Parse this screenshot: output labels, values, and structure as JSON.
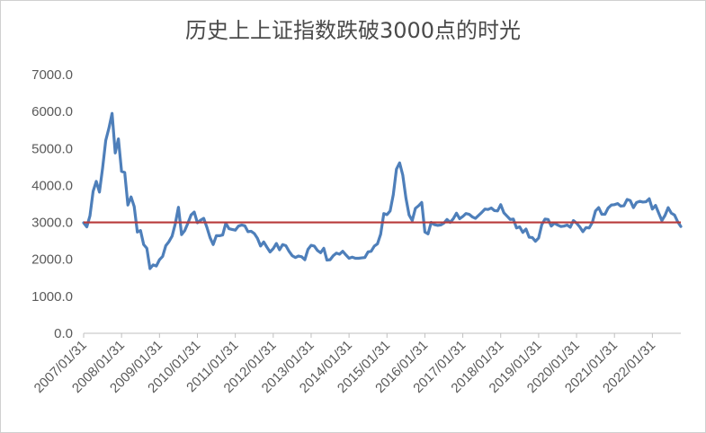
{
  "chart_data": {
    "type": "line",
    "title": "历史上上证指数跌破3000点的时光",
    "xlabel": "",
    "ylabel": "",
    "ylim": [
      0,
      7000
    ],
    "yticks": [
      "0.0",
      "1000.0",
      "2000.0",
      "3000.0",
      "4000.0",
      "5000.0",
      "6000.0",
      "7000.0"
    ],
    "xticks": [
      "2007/01/31",
      "2008/01/31",
      "2009/01/31",
      "2010/01/31",
      "2011/01/31",
      "2012/01/31",
      "2013/01/31",
      "2014/01/31",
      "2015/01/31",
      "2016/01/31",
      "2017/01/31",
      "2018/01/31",
      "2019/01/31",
      "2020/01/31",
      "2021/01/31",
      "2022/01/31"
    ],
    "grid": false,
    "legend": "none",
    "series": [
      {
        "color": "#4e7fba",
        "x": [
          "2007/01",
          "2007/02",
          "2007/03",
          "2007/04",
          "2007/05",
          "2007/06",
          "2007/07",
          "2007/08",
          "2007/09",
          "2007/10",
          "2007/11",
          "2007/12",
          "2008/01",
          "2008/02",
          "2008/03",
          "2008/04",
          "2008/05",
          "2008/06",
          "2008/07",
          "2008/08",
          "2008/09",
          "2008/10",
          "2008/11",
          "2008/12",
          "2009/01",
          "2009/02",
          "2009/03",
          "2009/04",
          "2009/05",
          "2009/06",
          "2009/07",
          "2009/08",
          "2009/09",
          "2009/10",
          "2009/11",
          "2009/12",
          "2010/01",
          "2010/02",
          "2010/03",
          "2010/04",
          "2010/05",
          "2010/06",
          "2010/07",
          "2010/08",
          "2010/09",
          "2010/10",
          "2010/11",
          "2010/12",
          "2011/01",
          "2011/02",
          "2011/03",
          "2011/04",
          "2011/05",
          "2011/06",
          "2011/07",
          "2011/08",
          "2011/09",
          "2011/10",
          "2011/11",
          "2011/12",
          "2012/01",
          "2012/02",
          "2012/03",
          "2012/04",
          "2012/05",
          "2012/06",
          "2012/07",
          "2012/08",
          "2012/09",
          "2012/10",
          "2012/11",
          "2012/12",
          "2013/01",
          "2013/02",
          "2013/03",
          "2013/04",
          "2013/05",
          "2013/06",
          "2013/07",
          "2013/08",
          "2013/09",
          "2013/10",
          "2013/11",
          "2013/12",
          "2014/01",
          "2014/02",
          "2014/03",
          "2014/04",
          "2014/05",
          "2014/06",
          "2014/07",
          "2014/08",
          "2014/09",
          "2014/10",
          "2014/11",
          "2014/12",
          "2015/01",
          "2015/02",
          "2015/03",
          "2015/04",
          "2015/05",
          "2015/06",
          "2015/07",
          "2015/08",
          "2015/09",
          "2015/10",
          "2015/11",
          "2015/12",
          "2016/01",
          "2016/02",
          "2016/03",
          "2016/04",
          "2016/05",
          "2016/06",
          "2016/07",
          "2016/08",
          "2016/09",
          "2016/10",
          "2016/11",
          "2016/12",
          "2017/01",
          "2017/02",
          "2017/03",
          "2017/04",
          "2017/05",
          "2017/06",
          "2017/07",
          "2017/08",
          "2017/09",
          "2017/10",
          "2017/11",
          "2017/12",
          "2018/01",
          "2018/02",
          "2018/03",
          "2018/04",
          "2018/05",
          "2018/06",
          "2018/07",
          "2018/08",
          "2018/09",
          "2018/10",
          "2018/11",
          "2018/12",
          "2019/01",
          "2019/02",
          "2019/03",
          "2019/04",
          "2019/05",
          "2019/06",
          "2019/07",
          "2019/08",
          "2019/09",
          "2019/10",
          "2019/11",
          "2019/12",
          "2020/01",
          "2020/02",
          "2020/03",
          "2020/04",
          "2020/05",
          "2020/06",
          "2020/07",
          "2020/08",
          "2020/09",
          "2020/10",
          "2020/11",
          "2020/12",
          "2021/01",
          "2021/02",
          "2021/03",
          "2021/04",
          "2021/05",
          "2021/06",
          "2021/07",
          "2021/08",
          "2021/09",
          "2021/10",
          "2021/11",
          "2021/12",
          "2022/01",
          "2022/02",
          "2022/03",
          "2022/04",
          "2022/05",
          "2022/06",
          "2022/07",
          "2022/08",
          "2022/09",
          "2022/10"
        ],
        "values": [
          2990,
          2880,
          3180,
          3840,
          4110,
          3820,
          4470,
          5220,
          5550,
          5950,
          4880,
          5260,
          4380,
          4350,
          3470,
          3690,
          3430,
          2740,
          2780,
          2400,
          2300,
          1750,
          1850,
          1820,
          1990,
          2080,
          2370,
          2480,
          2630,
          2960,
          3410,
          2670,
          2780,
          2980,
          3200,
          3280,
          2990,
          3060,
          3110,
          2870,
          2590,
          2400,
          2640,
          2640,
          2660,
          2980,
          2830,
          2810,
          2790,
          2900,
          2930,
          2910,
          2750,
          2760,
          2700,
          2570,
          2360,
          2470,
          2330,
          2200,
          2290,
          2430,
          2260,
          2400,
          2370,
          2220,
          2100,
          2050,
          2090,
          2070,
          1990,
          2270,
          2380,
          2360,
          2240,
          2180,
          2300,
          1980,
          1990,
          2100,
          2170,
          2140,
          2220,
          2120,
          2030,
          2060,
          2030,
          2030,
          2040,
          2050,
          2200,
          2220,
          2360,
          2420,
          2680,
          3240,
          3210,
          3310,
          3750,
          4440,
          4610,
          4280,
          3660,
          3200,
          3050,
          3380,
          3450,
          3540,
          2740,
          2690,
          3000,
          2940,
          2920,
          2930,
          2980,
          3080,
          3000,
          3100,
          3250,
          3100,
          3160,
          3240,
          3220,
          3150,
          3110,
          3190,
          3270,
          3360,
          3350,
          3390,
          3320,
          3310,
          3480,
          3260,
          3170,
          3080,
          3090,
          2850,
          2880,
          2730,
          2820,
          2600,
          2590,
          2490,
          2580,
          2940,
          3090,
          3080,
          2900,
          2980,
          2930,
          2890,
          2900,
          2930,
          2870,
          3050,
          2980,
          2880,
          2750,
          2860,
          2850,
          3000,
          3310,
          3400,
          3220,
          3220,
          3390,
          3470,
          3480,
          3510,
          3440,
          3450,
          3620,
          3590,
          3400,
          3540,
          3570,
          3550,
          3560,
          3640,
          3360,
          3460,
          3250,
          3050,
          3190,
          3400,
          3250,
          3200,
          3020,
          2890
        ]
      }
    ],
    "reference_line": {
      "value": 3000,
      "color": "#b83a3a"
    }
  }
}
